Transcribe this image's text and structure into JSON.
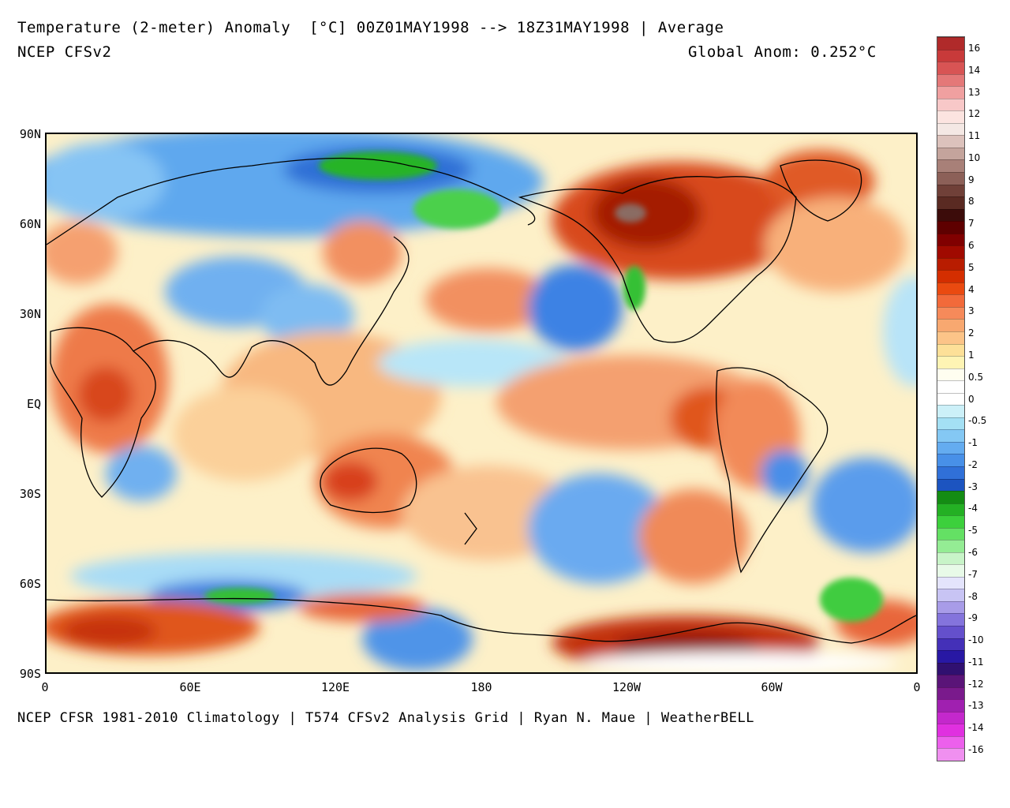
{
  "header": {
    "title": "Temperature (2-meter) Anomaly  [°C] 00Z01MAY1998 --> 18Z31MAY1998 | Average",
    "model": "NCEP CFSv2",
    "global_anom": "Global Anom: 0.252°C"
  },
  "footer": "NCEP CFSR 1981-2010 Climatology | T574 CFSv2 Analysis Grid | Ryan N. Maue | WeatherBELL",
  "map": {
    "projection": "equirectangular",
    "lon_range": [
      0,
      360
    ],
    "lat_range": [
      -90,
      90
    ],
    "lat_labels": [
      "90N",
      "60N",
      "30N",
      "EQ",
      "30S",
      "60S",
      "90S"
    ],
    "lon_labels": [
      "0",
      "60E",
      "120E",
      "180",
      "120W",
      "60W",
      "0"
    ],
    "coastlines": "black outline"
  },
  "colorbar": {
    "labels": [
      "16",
      "14",
      "13",
      "12",
      "11",
      "10",
      "9",
      "8",
      "7",
      "6",
      "5",
      "4",
      "3",
      "2",
      "1",
      "0.5",
      "0",
      "-0.5",
      "-1",
      "-2",
      "-3",
      "-4",
      "-5",
      "-6",
      "-7",
      "-8",
      "-9",
      "-10",
      "-11",
      "-12",
      "-13",
      "-14",
      "-16"
    ],
    "colors": [
      "#b02a2a",
      "#c83a3a",
      "#d85454",
      "#e47878",
      "#f0a0a0",
      "#f8c8c8",
      "#fce4e0",
      "#f4e8e4",
      "#dcc2bc",
      "#c4a49c",
      "#a88078",
      "#8c6058",
      "#704038",
      "#5a2a22",
      "#3c0c0a",
      "#5e0000",
      "#800000",
      "#a00a00",
      "#b81c00",
      "#d42e00",
      "#ea4a10",
      "#f26a3a",
      "#f68a5a",
      "#f8a870",
      "#fcc488",
      "#fde098",
      "#fef4b4",
      "#fffef0",
      "#ffffff",
      "#ffffff",
      "#ccf0f8",
      "#a4e0f4",
      "#84c8f4",
      "#64acf0",
      "#4890e8",
      "#3070d8",
      "#1c54c0",
      "#148c14",
      "#24b024",
      "#3cd03c",
      "#64e064",
      "#94ec94",
      "#c8f4c8",
      "#e8fae8",
      "#e4e4fc",
      "#c8c4f4",
      "#a89ce8",
      "#8474dc",
      "#6450cc",
      "#4430b8",
      "#2818a4",
      "#301070",
      "#5a1478",
      "#7a1a8c",
      "#a020b0",
      "#c428cc",
      "#e030e0",
      "#ec60ec",
      "#f090f0"
    ]
  }
}
